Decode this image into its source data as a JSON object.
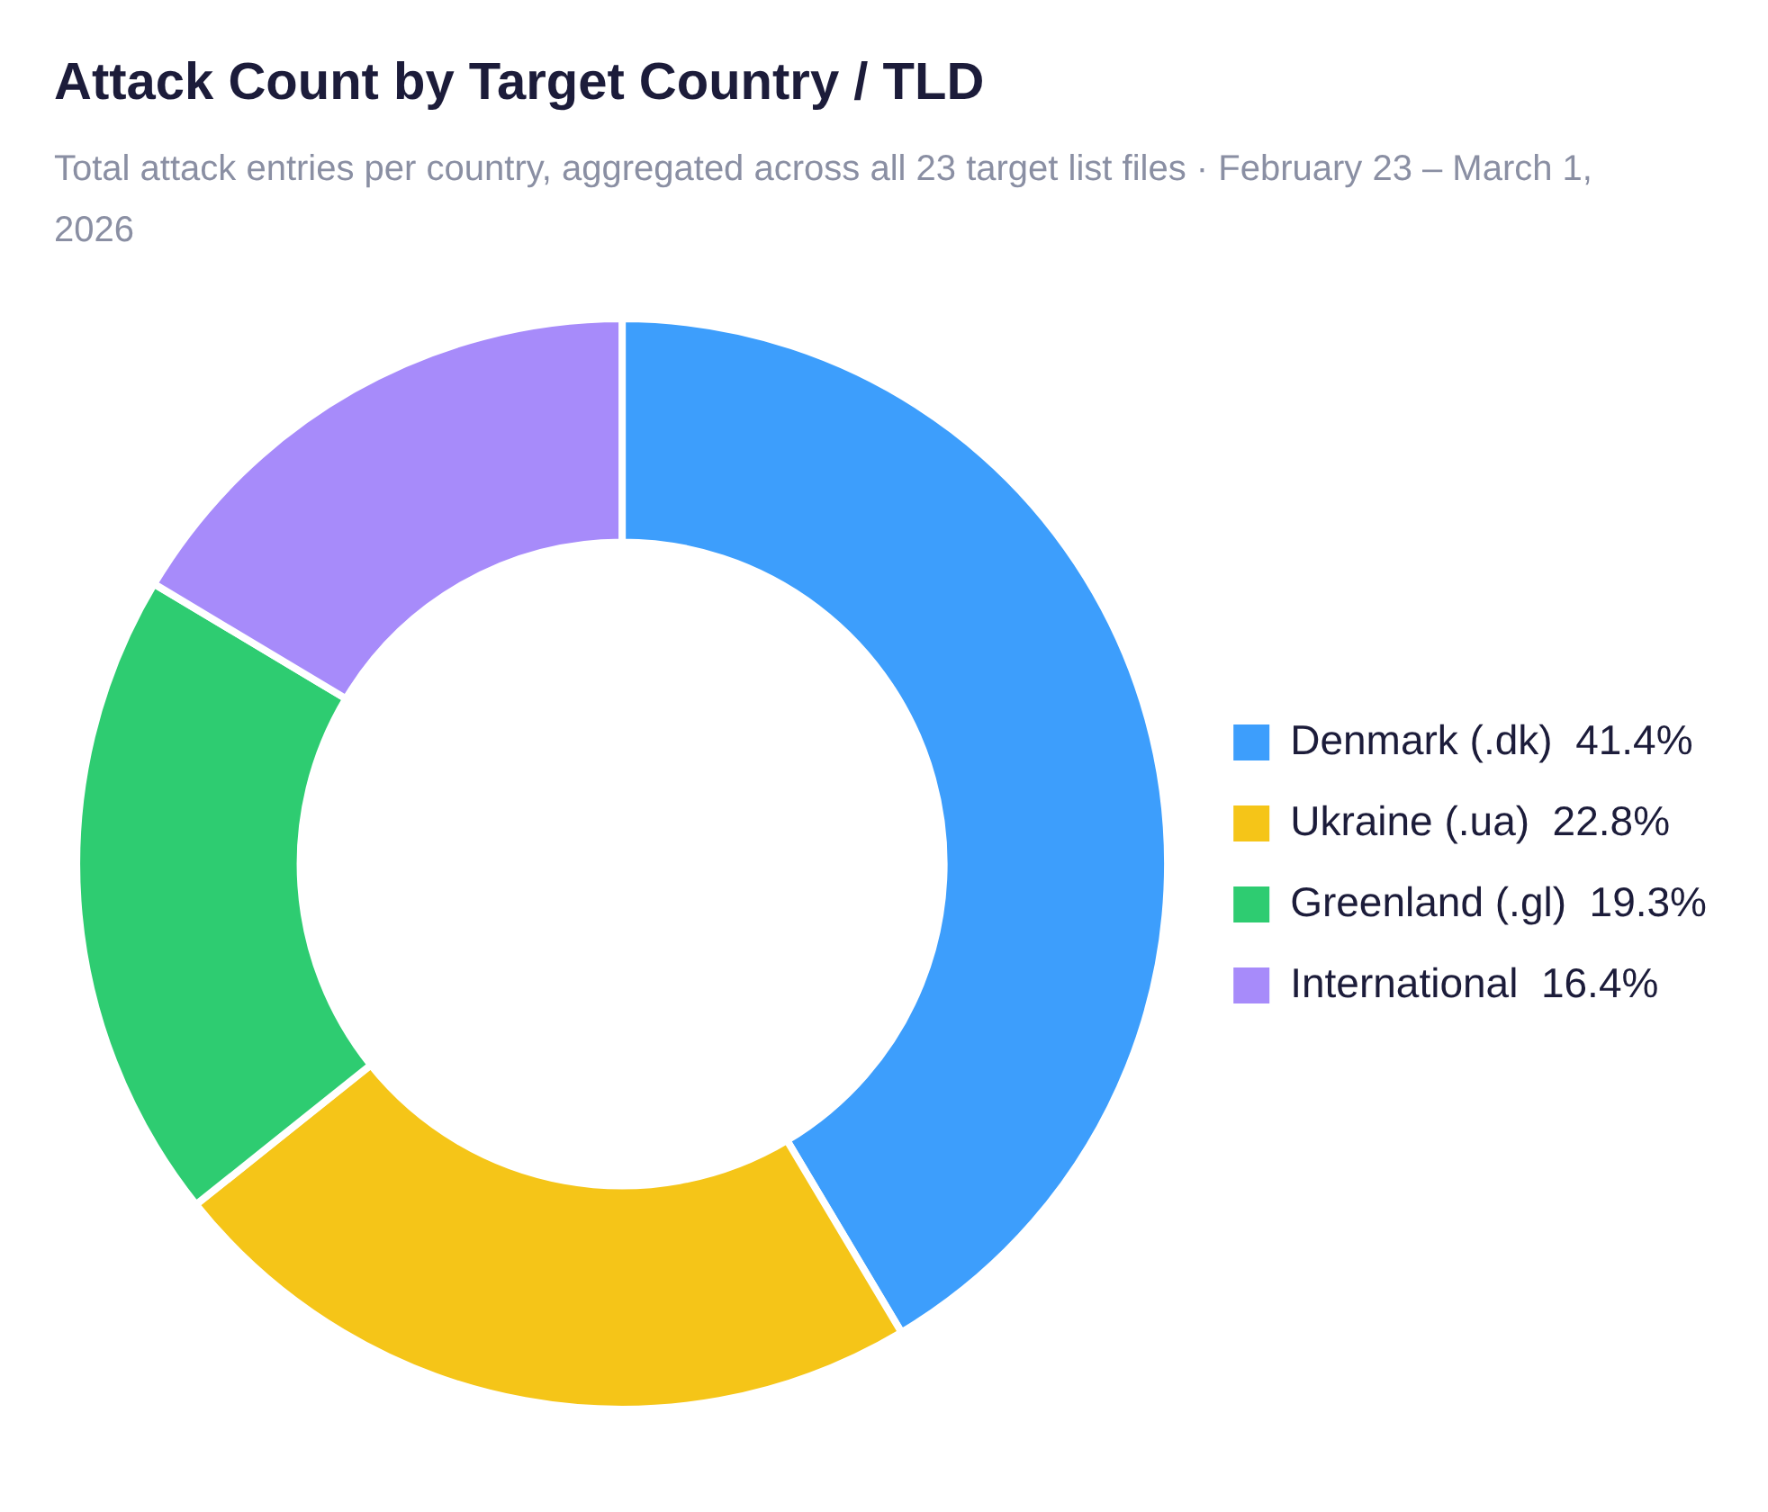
{
  "chart_data": {
    "type": "donut",
    "title": "Attack Count by Target Country / TLD",
    "subtitle": "Total attack entries per country, aggregated across all 23 target list files · February 23 – March 1, 2026",
    "categories": [
      "Denmark (.dk)",
      "Ukraine (.ua)",
      "Greenland (.gl)",
      "International"
    ],
    "values": [
      41.4,
      22.8,
      19.3,
      16.4
    ],
    "value_labels": [
      "41.4%",
      "22.8%",
      "19.3%",
      "16.4%"
    ],
    "colors": [
      "#3d9efc",
      "#f5c518",
      "#2ecc71",
      "#a78bfa"
    ],
    "legend": "right"
  }
}
